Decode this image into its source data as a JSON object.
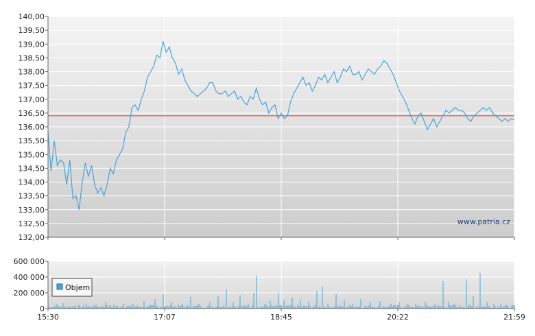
{
  "chart_data": [
    {
      "type": "line",
      "x_ticks": [
        "15:30",
        "17:07",
        "18:45",
        "20:22",
        "21:59"
      ],
      "y_ticks": [
        "140,00",
        "139,50",
        "139,00",
        "138,50",
        "138,00",
        "137,50",
        "137,00",
        "136,50",
        "136,00",
        "135,50",
        "135,00",
        "134,50",
        "134,00",
        "133,50",
        "133,00",
        "132,50",
        "132,00"
      ],
      "ylim": [
        132,
        140
      ],
      "reference_line": 136.4,
      "watermark": "www.patria.cz",
      "colors": {
        "line": "#4aa3d4",
        "reference": "#e03030"
      },
      "series": [
        {
          "points": [
            [
              0,
              135.8
            ],
            [
              2,
              134.4
            ],
            [
              4,
              135.5
            ],
            [
              6,
              134.6
            ],
            [
              8,
              134.8
            ],
            [
              10,
              134.7
            ],
            [
              12,
              133.9
            ],
            [
              14,
              134.8
            ],
            [
              16,
              133.4
            ],
            [
              18,
              133.5
            ],
            [
              20,
              133.0
            ],
            [
              22,
              134.0
            ],
            [
              24,
              134.7
            ],
            [
              26,
              134.2
            ],
            [
              28,
              134.6
            ],
            [
              30,
              133.9
            ],
            [
              32,
              133.6
            ],
            [
              34,
              133.8
            ],
            [
              36,
              133.5
            ],
            [
              38,
              133.9
            ],
            [
              40,
              134.5
            ],
            [
              42,
              134.3
            ],
            [
              44,
              134.8
            ],
            [
              46,
              135.0
            ],
            [
              48,
              135.2
            ],
            [
              50,
              135.8
            ],
            [
              52,
              136.0
            ],
            [
              54,
              136.7
            ],
            [
              56,
              136.8
            ],
            [
              58,
              136.6
            ],
            [
              60,
              137.0
            ],
            [
              62,
              137.3
            ],
            [
              64,
              137.8
            ],
            [
              66,
              138.0
            ],
            [
              68,
              138.2
            ],
            [
              70,
              138.6
            ],
            [
              72,
              138.5
            ],
            [
              74,
              139.1
            ],
            [
              76,
              138.7
            ],
            [
              78,
              138.9
            ],
            [
              80,
              138.5
            ],
            [
              82,
              138.3
            ],
            [
              84,
              137.9
            ],
            [
              86,
              138.1
            ],
            [
              88,
              137.7
            ],
            [
              90,
              137.5
            ],
            [
              92,
              137.3
            ],
            [
              94,
              137.2
            ],
            [
              96,
              137.1
            ],
            [
              98,
              137.2
            ],
            [
              100,
              137.3
            ],
            [
              102,
              137.4
            ],
            [
              104,
              137.6
            ],
            [
              106,
              137.6
            ],
            [
              108,
              137.3
            ],
            [
              110,
              137.2
            ],
            [
              112,
              137.2
            ],
            [
              114,
              137.3
            ],
            [
              116,
              137.1
            ],
            [
              118,
              137.2
            ],
            [
              120,
              137.3
            ],
            [
              122,
              137.0
            ],
            [
              124,
              137.1
            ],
            [
              126,
              136.9
            ],
            [
              128,
              136.8
            ],
            [
              130,
              137.1
            ],
            [
              132,
              137.0
            ],
            [
              134,
              137.4
            ],
            [
              136,
              137.0
            ],
            [
              138,
              136.8
            ],
            [
              140,
              136.9
            ],
            [
              142,
              136.5
            ],
            [
              144,
              136.7
            ],
            [
              146,
              136.8
            ],
            [
              148,
              136.3
            ],
            [
              150,
              136.5
            ],
            [
              152,
              136.3
            ],
            [
              154,
              136.4
            ],
            [
              156,
              136.9
            ],
            [
              158,
              137.2
            ],
            [
              160,
              137.4
            ],
            [
              162,
              137.6
            ],
            [
              164,
              137.8
            ],
            [
              166,
              137.5
            ],
            [
              168,
              137.6
            ],
            [
              170,
              137.3
            ],
            [
              172,
              137.5
            ],
            [
              174,
              137.8
            ],
            [
              176,
              137.7
            ],
            [
              178,
              137.9
            ],
            [
              180,
              137.6
            ],
            [
              182,
              137.8
            ],
            [
              184,
              138.0
            ],
            [
              186,
              137.6
            ],
            [
              188,
              137.8
            ],
            [
              190,
              138.1
            ],
            [
              192,
              138.0
            ],
            [
              194,
              138.2
            ],
            [
              196,
              137.9
            ],
            [
              198,
              137.9
            ],
            [
              200,
              138.0
            ],
            [
              202,
              137.7
            ],
            [
              204,
              137.9
            ],
            [
              206,
              138.1
            ],
            [
              208,
              138.0
            ],
            [
              210,
              137.9
            ],
            [
              212,
              138.1
            ],
            [
              214,
              138.2
            ],
            [
              216,
              138.4
            ],
            [
              218,
              138.3
            ],
            [
              220,
              138.1
            ],
            [
              222,
              137.9
            ],
            [
              224,
              137.6
            ],
            [
              226,
              137.3
            ],
            [
              228,
              137.1
            ],
            [
              230,
              136.9
            ],
            [
              232,
              136.6
            ],
            [
              234,
              136.3
            ],
            [
              236,
              136.1
            ],
            [
              238,
              136.4
            ],
            [
              240,
              136.5
            ],
            [
              242,
              136.2
            ],
            [
              244,
              135.9
            ],
            [
              246,
              136.1
            ],
            [
              248,
              136.3
            ],
            [
              250,
              136.0
            ],
            [
              252,
              136.2
            ],
            [
              254,
              136.4
            ],
            [
              256,
              136.6
            ],
            [
              258,
              136.5
            ],
            [
              260,
              136.6
            ],
            [
              262,
              136.7
            ],
            [
              264,
              136.6
            ],
            [
              266,
              136.6
            ],
            [
              268,
              136.5
            ],
            [
              270,
              136.3
            ],
            [
              272,
              136.2
            ],
            [
              274,
              136.4
            ],
            [
              276,
              136.5
            ],
            [
              278,
              136.6
            ],
            [
              280,
              136.7
            ],
            [
              282,
              136.6
            ],
            [
              284,
              136.7
            ],
            [
              286,
              136.5
            ],
            [
              288,
              136.4
            ],
            [
              290,
              136.3
            ],
            [
              292,
              136.2
            ],
            [
              294,
              136.3
            ],
            [
              296,
              136.2
            ],
            [
              298,
              136.3
            ],
            [
              300,
              136.25
            ]
          ]
        }
      ]
    },
    {
      "type": "bar",
      "x_ticks": [
        "15:30",
        "17:07",
        "18:45",
        "20:22",
        "21:59"
      ],
      "y_ticks": [
        "600 000",
        "400 000",
        "200 000",
        "0"
      ],
      "ylim": [
        0,
        600000
      ],
      "legend": "Objem",
      "colors": {
        "bar": "#4aa3d4"
      },
      "spikes": [
        [
          6,
          60000
        ],
        [
          11,
          70000
        ],
        [
          20,
          40000
        ],
        [
          28,
          60000
        ],
        [
          35,
          50000
        ],
        [
          42,
          80000
        ],
        [
          48,
          50000
        ],
        [
          55,
          60000
        ],
        [
          62,
          60000
        ],
        [
          70,
          90000
        ],
        [
          78,
          120000
        ],
        [
          84,
          180000
        ],
        [
          90,
          80000
        ],
        [
          98,
          60000
        ],
        [
          104,
          150000
        ],
        [
          110,
          60000
        ],
        [
          118,
          80000
        ],
        [
          124,
          160000
        ],
        [
          130,
          240000
        ],
        [
          135,
          80000
        ],
        [
          140,
          170000
        ],
        [
          146,
          60000
        ],
        [
          150,
          200000
        ],
        [
          152,
          420000
        ],
        [
          158,
          60000
        ],
        [
          162,
          100000
        ],
        [
          168,
          200000
        ],
        [
          172,
          100000
        ],
        [
          178,
          140000
        ],
        [
          184,
          120000
        ],
        [
          190,
          80000
        ],
        [
          196,
          220000
        ],
        [
          200,
          280000
        ],
        [
          204,
          60000
        ],
        [
          210,
          180000
        ],
        [
          216,
          110000
        ],
        [
          222,
          60000
        ],
        [
          228,
          120000
        ],
        [
          235,
          80000
        ],
        [
          242,
          90000
        ],
        [
          250,
          60000
        ],
        [
          256,
          80000
        ],
        [
          262,
          60000
        ],
        [
          268,
          60000
        ],
        [
          275,
          80000
        ],
        [
          282,
          60000
        ],
        [
          288,
          350000
        ],
        [
          292,
          80000
        ],
        [
          296,
          60000
        ],
        [
          305,
          370000
        ],
        [
          310,
          160000
        ],
        [
          315,
          450000
        ],
        [
          320,
          80000
        ],
        [
          325,
          60000
        ],
        [
          330,
          60000
        ]
      ]
    }
  ]
}
